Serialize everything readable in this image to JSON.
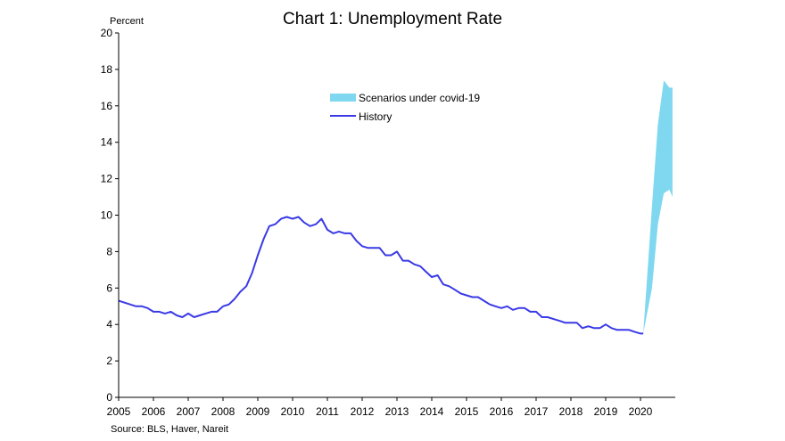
{
  "chart_data": {
    "type": "line",
    "title": "Chart 1: Unemployment Rate",
    "ylabel": "Percent",
    "source": "Source: BLS, Haver, Nareit",
    "ylim": [
      0,
      20
    ],
    "yticks": [
      "0",
      "2",
      "4",
      "6",
      "8",
      "10",
      "12",
      "14",
      "16",
      "18",
      "20"
    ],
    "xlim": [
      2005,
      2021
    ],
    "xticks": [
      "2005",
      "2006",
      "2007",
      "2008",
      "2009",
      "2010",
      "2011",
      "2012",
      "2013",
      "2014",
      "2015",
      "2016",
      "2017",
      "2018",
      "2019",
      "2020"
    ],
    "grid": false,
    "legend_position": "top-center",
    "colors": {
      "history": "#3a3ae6",
      "scenarios": "#7fd8f0"
    },
    "series": [
      {
        "name": "History",
        "kind": "line",
        "x": [
          2005.0,
          2005.17,
          2005.33,
          2005.5,
          2005.67,
          2005.83,
          2006.0,
          2006.17,
          2006.33,
          2006.5,
          2006.67,
          2006.83,
          2007.0,
          2007.17,
          2007.33,
          2007.5,
          2007.67,
          2007.83,
          2008.0,
          2008.17,
          2008.33,
          2008.5,
          2008.67,
          2008.83,
          2009.0,
          2009.17,
          2009.33,
          2009.5,
          2009.67,
          2009.83,
          2010.0,
          2010.17,
          2010.33,
          2010.5,
          2010.67,
          2010.83,
          2011.0,
          2011.17,
          2011.33,
          2011.5,
          2011.67,
          2011.83,
          2012.0,
          2012.17,
          2012.33,
          2012.5,
          2012.67,
          2012.83,
          2013.0,
          2013.17,
          2013.33,
          2013.5,
          2013.67,
          2013.83,
          2014.0,
          2014.17,
          2014.33,
          2014.5,
          2014.67,
          2014.83,
          2015.0,
          2015.17,
          2015.33,
          2015.5,
          2015.67,
          2015.83,
          2016.0,
          2016.17,
          2016.33,
          2016.5,
          2016.67,
          2016.83,
          2017.0,
          2017.17,
          2017.33,
          2017.5,
          2017.67,
          2017.83,
          2018.0,
          2018.17,
          2018.33,
          2018.5,
          2018.67,
          2018.83,
          2019.0,
          2019.17,
          2019.33,
          2019.5,
          2019.67,
          2019.83,
          2020.0,
          2020.08
        ],
        "values": [
          5.3,
          5.2,
          5.1,
          5.0,
          5.0,
          4.9,
          4.7,
          4.7,
          4.6,
          4.7,
          4.5,
          4.4,
          4.6,
          4.4,
          4.5,
          4.6,
          4.7,
          4.7,
          5.0,
          5.1,
          5.4,
          5.8,
          6.1,
          6.8,
          7.8,
          8.7,
          9.4,
          9.5,
          9.8,
          9.9,
          9.8,
          9.9,
          9.6,
          9.4,
          9.5,
          9.8,
          9.2,
          9.0,
          9.1,
          9.0,
          9.0,
          8.6,
          8.3,
          8.2,
          8.2,
          8.2,
          7.8,
          7.8,
          8.0,
          7.5,
          7.5,
          7.3,
          7.2,
          6.9,
          6.6,
          6.7,
          6.2,
          6.1,
          5.9,
          5.7,
          5.6,
          5.5,
          5.5,
          5.3,
          5.1,
          5.0,
          4.9,
          5.0,
          4.8,
          4.9,
          4.9,
          4.7,
          4.7,
          4.4,
          4.4,
          4.3,
          4.2,
          4.1,
          4.1,
          4.1,
          3.8,
          3.9,
          3.8,
          3.8,
          4.0,
          3.8,
          3.7,
          3.7,
          3.7,
          3.6,
          3.5,
          3.5
        ]
      },
      {
        "name": "Scenarios under covid-19",
        "kind": "band",
        "x": [
          2020.08,
          2020.17,
          2020.33,
          2020.5,
          2020.67,
          2020.83,
          2020.92
        ],
        "low": [
          3.5,
          4.4,
          6.0,
          9.5,
          11.2,
          11.4,
          11.0
        ],
        "high": [
          3.5,
          6.0,
          10.5,
          15.0,
          17.4,
          17.0,
          17.0
        ]
      }
    ]
  }
}
